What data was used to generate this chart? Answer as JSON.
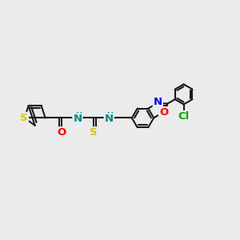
{
  "background_color": "#ebebeb",
  "bond_color": "#1a1a1a",
  "bond_width": 1.5,
  "atom_colors": {
    "S": "#cccc00",
    "O": "#ff0000",
    "N": "#008b8b",
    "N_ox": "#0000ff",
    "Cl": "#00aa00",
    "C": "#1a1a1a"
  },
  "font_size": 9.5,
  "fig_width": 3.0,
  "fig_height": 3.0,
  "dpi": 100
}
